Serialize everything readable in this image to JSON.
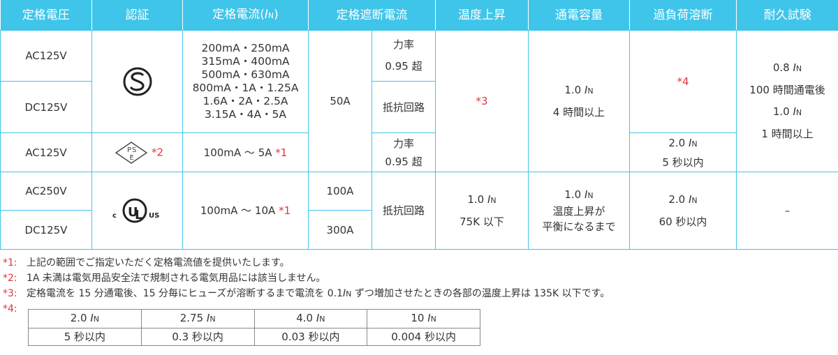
{
  "headers": [
    "定格電圧",
    "認証",
    "定格電流",
    "定格遮断電流",
    "温度上昇",
    "通電容量",
    "過負荷溶断",
    "耐久試験"
  ],
  "rated_current_symbol": "I",
  "rated_current_sub": "N",
  "paren_open": "(",
  "paren_close": ")",
  "voltages": [
    "AC125V",
    "DC125V",
    "AC125V",
    "AC250V",
    "DC125V"
  ],
  "cert": {
    "pse_note": "*2"
  },
  "currents": {
    "group1": [
      "200mA・250mA",
      "315mA・400mA",
      "500mA・630mA",
      "800mA・1A・1.25A",
      "1.6A・2A・2.5A",
      "3.15A・4A・5A"
    ],
    "pse_range": "100mA ～ 5A",
    "pse_note": "*1",
    "ul_range": "100mA ～ 10A",
    "ul_note": "*1"
  },
  "breaking": {
    "main": "50A",
    "pf_line1": "力率",
    "pf_line2": "0.95 超",
    "resistive": "抵抗回路",
    "pf2_line1": "力率",
    "pf2_line2": "0.95 超",
    "ul_ac": "100A",
    "ul_dc": "300A",
    "ul_resistive": "抵抗回路"
  },
  "temp_rise": {
    "note": "*3",
    "ul_value": "1.0",
    "ul_line2": "75K 以下"
  },
  "capacity": {
    "value": "1.0",
    "line2": "4 時間以上",
    "ul_value": "1.0",
    "ul_line2": "温度上昇が",
    "ul_line3": "平衡になるまで"
  },
  "overload": {
    "note": "*4",
    "pse_value": "2.0",
    "pse_line2": "5 秒以内",
    "ul_value": "2.0",
    "ul_line2": "60 秒以内"
  },
  "durability": {
    "value1": "0.8",
    "line2": "100 時間通電後",
    "value2": "1.0",
    "line4": "1 時間以上",
    "ul_value": "–"
  },
  "notes": [
    {
      "key": "*1:",
      "text": "上記の範囲でご指定いただく定格電流値を提供いたします。"
    },
    {
      "key": "*2:",
      "text": "1A 未満は電気用品安全法で規制される電気用品には該当しません。"
    },
    {
      "key": "*3:",
      "text_before": "定格電流を 15 分通電後、15 分毎にヒューズが溶断するまで電流を 0.1",
      "text_after": " ずつ増加させたときの各部の温度上昇は 135K 以下です。"
    },
    {
      "key": "*4:"
    }
  ],
  "sub_table": {
    "multiples": [
      "2.0",
      "2.75",
      "4.0",
      "10"
    ],
    "times": [
      "5 秒以内",
      "0.3 秒以内",
      "0.03 秒以内",
      "0.004 秒以内"
    ]
  }
}
